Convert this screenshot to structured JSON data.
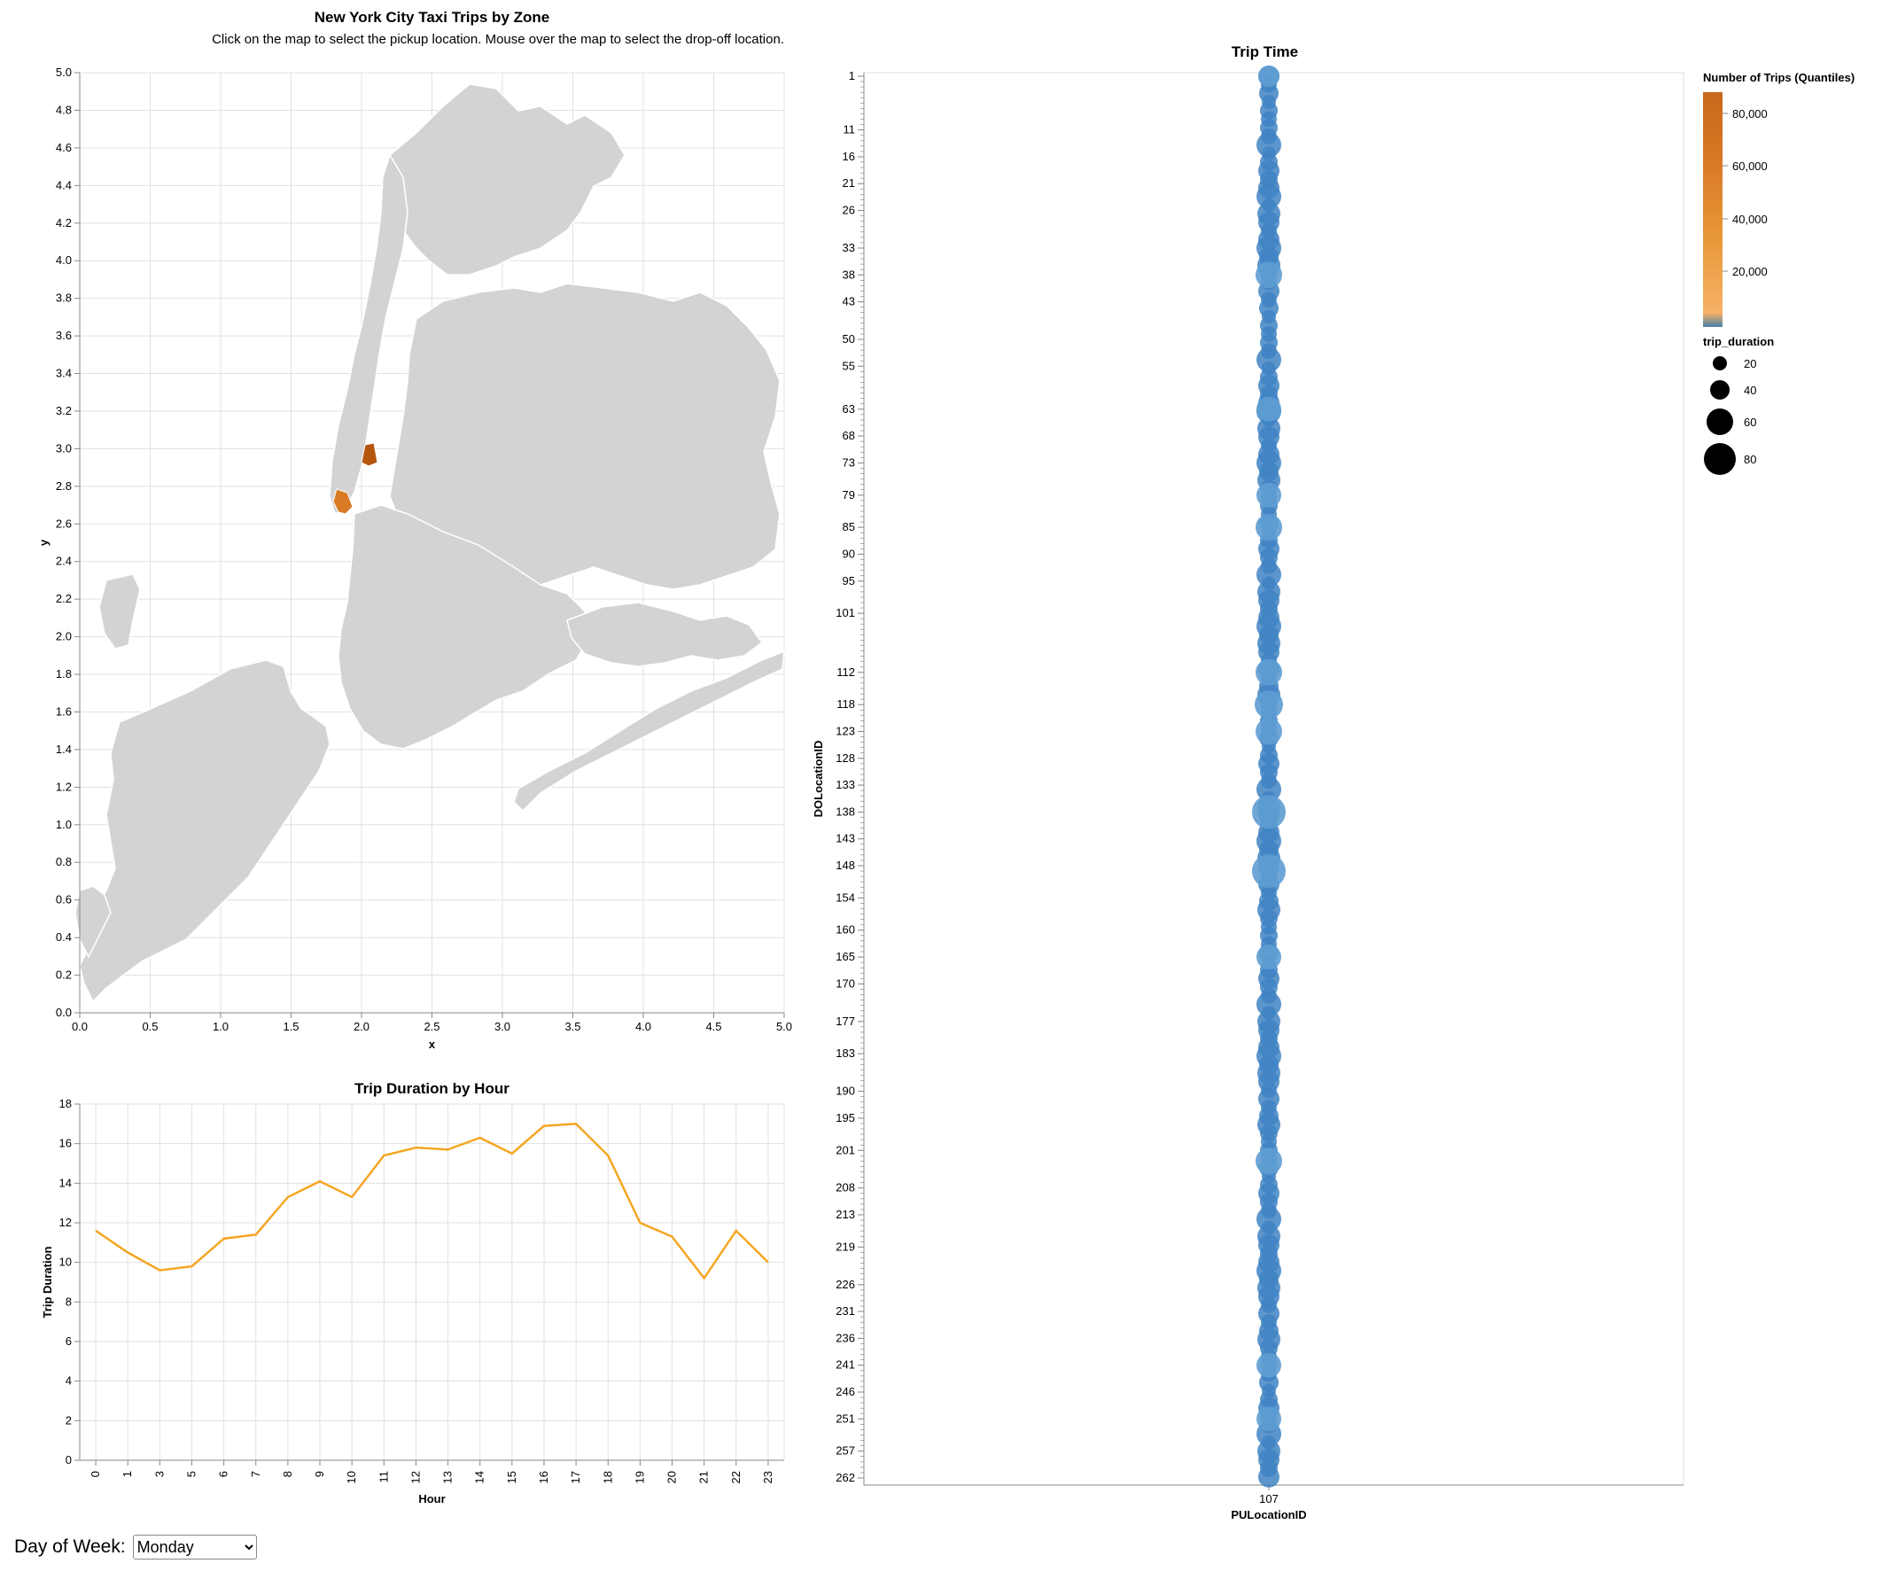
{
  "header": {
    "title": "New York City Taxi Trips by Zone",
    "subtitle": "Click on the map to select the pickup location. Mouse over the map to select the drop-off location."
  },
  "controls": {
    "day_label": "Day of Week:",
    "day_value": "Monday"
  },
  "colors": {
    "map_fill": "#d3d3d3",
    "highlight_dark": "#b5560f",
    "highlight_light": "#d97a25",
    "line": "#f5a623",
    "point": "#3f84c3",
    "grid": "#e1e1e1"
  },
  "chart_data": [
    {
      "type": "scatter",
      "title": "",
      "xlabel": "x",
      "ylabel": "y",
      "xlim": [
        0,
        5
      ],
      "ylim": [
        0,
        5
      ],
      "x_ticks": [
        "0.0",
        "0.5",
        "1.0",
        "1.5",
        "2.0",
        "2.5",
        "3.0",
        "3.5",
        "4.0",
        "4.5",
        "5.0"
      ],
      "y_ticks": [
        "0.0",
        "0.2",
        "0.4",
        "0.6",
        "0.8",
        "1.0",
        "1.2",
        "1.4",
        "1.6",
        "1.8",
        "2.0",
        "2.2",
        "2.4",
        "2.6",
        "2.8",
        "3.0",
        "3.2",
        "3.4",
        "3.6",
        "3.8",
        "4.0",
        "4.2",
        "4.4",
        "4.6",
        "4.8",
        "5.0"
      ],
      "grid": true
    },
    {
      "type": "line",
      "title": "Trip Duration by Hour",
      "xlabel": "Hour",
      "ylabel": "Trip Duration",
      "categories": [
        "0",
        "1",
        "3",
        "5",
        "6",
        "7",
        "8",
        "9",
        "10",
        "11",
        "12",
        "13",
        "14",
        "15",
        "16",
        "17",
        "18",
        "19",
        "20",
        "21",
        "22",
        "23"
      ],
      "values": [
        11.6,
        10.5,
        9.6,
        9.8,
        11.2,
        11.4,
        13.3,
        14.1,
        13.3,
        15.4,
        15.8,
        15.7,
        16.3,
        15.5,
        16.9,
        17.0,
        15.4,
        12.0,
        11.3,
        9.2,
        11.6,
        10.0
      ],
      "ylim": [
        0,
        18
      ],
      "y_ticks": [
        0,
        2,
        4,
        6,
        8,
        10,
        12,
        14,
        16,
        18
      ],
      "grid": true
    },
    {
      "type": "scatter",
      "title": "Trip Time",
      "xlabel": "PULocationID",
      "ylabel": "DOLocationID",
      "x_categories": [
        "107"
      ],
      "y_ticks": [
        "1",
        "11",
        "16",
        "21",
        "26",
        "33",
        "38",
        "43",
        "50",
        "55",
        "63",
        "68",
        "73",
        "79",
        "85",
        "90",
        "95",
        "101",
        "112",
        "118",
        "123",
        "128",
        "133",
        "138",
        "143",
        "148",
        "154",
        "160",
        "165",
        "170",
        "177",
        "183",
        "190",
        "195",
        "201",
        "208",
        "213",
        "219",
        "226",
        "231",
        "236",
        "241",
        "246",
        "251",
        "257",
        "262"
      ],
      "points_note": "",
      "legend_color_title": "Number of Trips (Quantiles)",
      "legend_color_ticks": [
        "80,000",
        "60,000",
        "40,000",
        "20,000"
      ],
      "legend_size_title": "trip_duration",
      "legend_size_values": [
        "20",
        "40",
        "60",
        "80"
      ]
    }
  ]
}
